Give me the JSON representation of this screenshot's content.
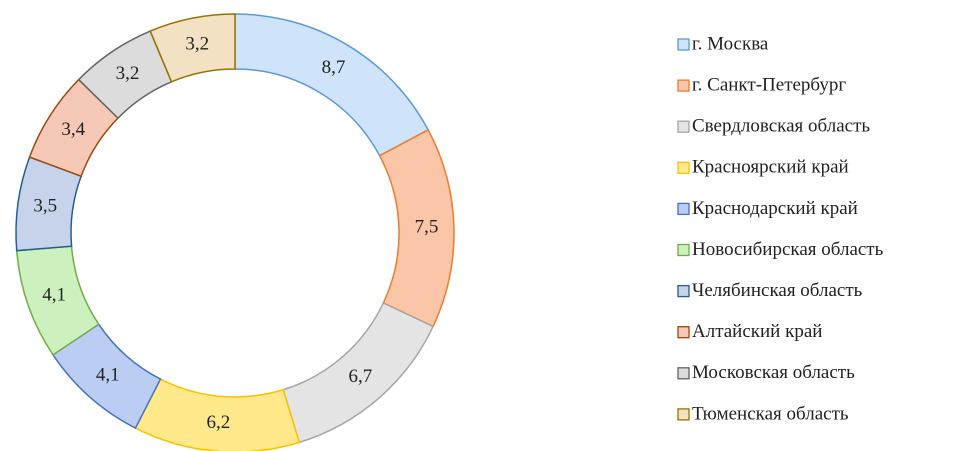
{
  "chart_data": {
    "type": "donut",
    "categories": [
      "г. Москва",
      "г. Санкт-Петербург",
      "Свердловская область",
      "Красноярский край",
      "Краснодарский край",
      "Новосибирская область",
      "Челябинская область",
      "Алтайский край",
      "Московская область",
      "Тюменская область"
    ],
    "values": [
      8.7,
      7.5,
      6.7,
      6.2,
      4.1,
      4.1,
      3.5,
      3.4,
      3.2,
      3.2
    ],
    "value_labels": [
      "8,7",
      "7,5",
      "6,7",
      "6,2",
      "4,1",
      "4,1",
      "3,5",
      "3,4",
      "3,2",
      "3,2"
    ],
    "colors": [
      "#cfe4fa",
      "#fbc6a8",
      "#e4e4e4",
      "#ffe98a",
      "#bccdf3",
      "#cdf0bf",
      "#c6d3ea",
      "#f5c9b6",
      "#dcdcdc",
      "#f3e1c3"
    ],
    "edge_colors": [
      "#5b9bd5",
      "#ed7d31",
      "#a5a5a5",
      "#ffc000",
      "#4472c4",
      "#70ad47",
      "#255e91",
      "#9e480e",
      "#636363",
      "#997300"
    ],
    "legend": "right"
  }
}
